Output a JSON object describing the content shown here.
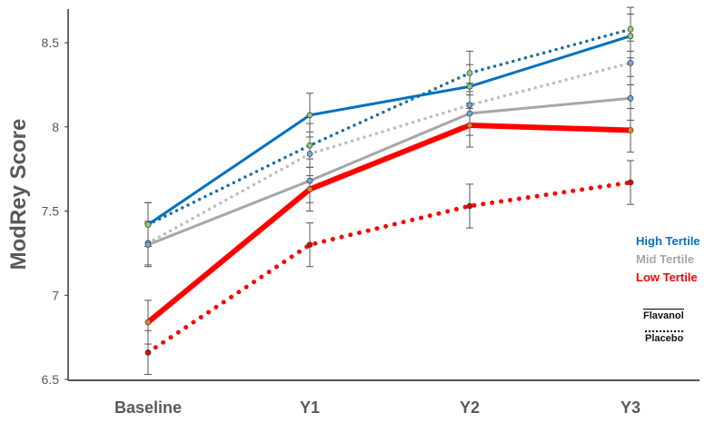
{
  "chart_data": {
    "type": "line",
    "ylabel": "ModRey Score",
    "categories": [
      "Baseline",
      "Y1",
      "Y2",
      "Y3"
    ],
    "ylim": [
      6.5,
      8.7
    ],
    "yticks": [
      "6.5",
      "7",
      "7.5",
      "8",
      "8.5"
    ],
    "ytick_values": [
      6.5,
      7,
      7.5,
      8,
      8.5
    ],
    "error": 0.13,
    "series": [
      {
        "name": "High Tertile Placebo",
        "color": "#1f6b9c",
        "style": "dotted",
        "marker": "#8fd07a",
        "values": [
          7.42,
          7.89,
          8.32,
          8.58
        ]
      },
      {
        "name": "Mid Tertile Placebo",
        "color": "#bdbdbd",
        "style": "dotted",
        "marker": "#6fa8e8",
        "values": [
          7.31,
          7.84,
          8.13,
          8.38
        ]
      },
      {
        "name": "Low Tertile Placebo",
        "color": "#ff0000",
        "style": "dotted",
        "marker": "#e00000",
        "values": [
          6.66,
          7.3,
          7.53,
          7.67
        ]
      },
      {
        "name": "Mid Tertile Flavanol",
        "color": "#a6a6a6",
        "style": "solid",
        "marker": "#6fa8e8",
        "values": [
          7.3,
          7.68,
          8.08,
          8.17
        ]
      },
      {
        "name": "High Tertile Flavanol",
        "color": "#0070c0",
        "style": "solid",
        "marker": "#8fd07a",
        "values": [
          7.42,
          8.07,
          8.24,
          8.54
        ]
      },
      {
        "name": "Low Tertile Flavanol",
        "color": "#ff0000",
        "style": "thick",
        "marker": "#f08020",
        "values": [
          6.84,
          7.63,
          8.01,
          7.98
        ]
      }
    ],
    "legend": {
      "groups": [
        {
          "label": "High Tertile",
          "color": "#0070c0"
        },
        {
          "label": "Mid Tertile",
          "color": "#a6a6a6"
        },
        {
          "label": "Low Tertile",
          "color": "#ff0000"
        }
      ],
      "styles": [
        "Flavanol",
        "Placebo"
      ],
      "placement": "right"
    }
  }
}
